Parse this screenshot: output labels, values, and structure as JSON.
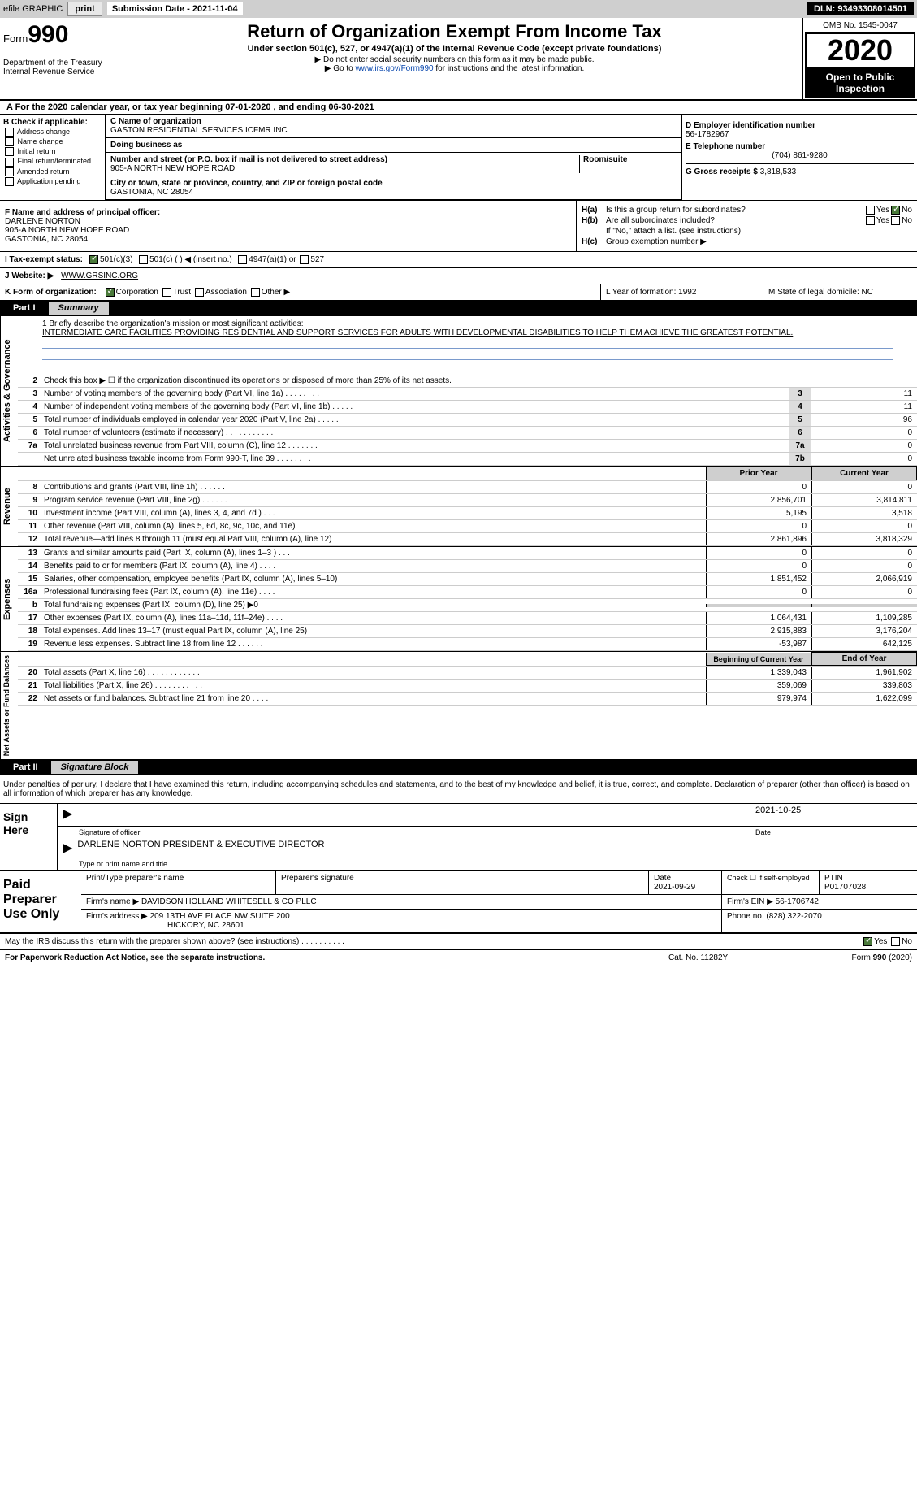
{
  "topbar": {
    "efile": "efile GRAPHIC ",
    "print": "print",
    "subdate_label": "Submission Date - 2021-11-04",
    "dln": "DLN: 93493308014501"
  },
  "header": {
    "form_word": "Form",
    "form_num": "990",
    "dept": "Department of the Treasury\nInternal Revenue Service",
    "title": "Return of Organization Exempt From Income Tax",
    "subtitle": "Under section 501(c), 527, or 4947(a)(1) of the Internal Revenue Code (except private foundations)",
    "note1": "▶ Do not enter social security numbers on this form as it may be made public.",
    "note2_pre": "▶ Go to ",
    "note2_link": "www.irs.gov/Form990",
    "note2_post": " for instructions and the latest information.",
    "omb": "OMB No. 1545-0047",
    "year": "2020",
    "open": "Open to Public Inspection"
  },
  "line_a": "A For the 2020 calendar year, or tax year beginning 07-01-2020   , and ending 06-30-2021",
  "section_b": {
    "head": "B Check if applicable:",
    "opts": [
      "Address change",
      "Name change",
      "Initial return",
      "Final return/terminated",
      "Amended return",
      "Application pending"
    ]
  },
  "section_c": {
    "name_label": "C Name of organization",
    "name": "GASTON RESIDENTIAL SERVICES ICFMR INC",
    "dba_label": "Doing business as",
    "addr_label": "Number and street (or P.O. box if mail is not delivered to street address)",
    "room_label": "Room/suite",
    "addr": "905-A NORTH NEW HOPE ROAD",
    "city_label": "City or town, state or province, country, and ZIP or foreign postal code",
    "city": "GASTONIA, NC  28054"
  },
  "section_d": {
    "ein_label": "D Employer identification number",
    "ein": "56-1782967",
    "tel_label": "E Telephone number",
    "tel": "(704) 861-9280",
    "gross_label": "G Gross receipts $",
    "gross": "3,818,533"
  },
  "section_f": {
    "label": "F Name and address of principal officer:",
    "name": "DARLENE NORTON",
    "addr1": "905-A NORTH NEW HOPE ROAD",
    "addr2": "GASTONIA, NC  28054"
  },
  "section_h": {
    "a_label": "H(a)",
    "a_text": "Is this a group return for subordinates?",
    "yes": "Yes",
    "no": "No",
    "b_label": "H(b)",
    "b_text": "Are all subordinates included?",
    "b_note": "If \"No,\" attach a list. (see instructions)",
    "c_label": "H(c)",
    "c_text": "Group exemption number ▶"
  },
  "section_i": {
    "label": "I    Tax-exempt status:",
    "o1": "501(c)(3)",
    "o2": "501(c) (  ) ◀ (insert no.)",
    "o3": "4947(a)(1) or",
    "o4": "527"
  },
  "section_j": {
    "label": "J   Website: ▶",
    "value": "WWW.GRSINC.ORG"
  },
  "section_k": {
    "label": "K Form of organization:",
    "o1": "Corporation",
    "o2": "Trust",
    "o3": "Association",
    "o4": "Other ▶"
  },
  "section_lm": {
    "l": "L Year of formation: 1992",
    "m": "M State of legal domicile: NC"
  },
  "part1": {
    "part": "Part I",
    "name": "Summary"
  },
  "mission": {
    "q1": "1   Briefly describe the organization's mission or most significant activities:",
    "text": "INTERMEDIATE CARE FACILITIES PROVIDING RESIDENTIAL AND SUPPORT SERVICES FOR ADULTS WITH DEVELOPMENTAL DISABILITIES TO HELP THEM ACHIEVE THE GREATEST POTENTIAL."
  },
  "gov_rows": [
    {
      "n": "2",
      "t": "Check this box ▶ ☐  if the organization discontinued its operations or disposed of more than 25% of its net assets.",
      "b": "",
      "v": ""
    },
    {
      "n": "3",
      "t": "Number of voting members of the governing body (Part VI, line 1a)  .   .   .   .   .   .   .   .",
      "b": "3",
      "v": "11"
    },
    {
      "n": "4",
      "t": "Number of independent voting members of the governing body (Part VI, line 1b)  .   .   .   .   .",
      "b": "4",
      "v": "11"
    },
    {
      "n": "5",
      "t": "Total number of individuals employed in calendar year 2020 (Part V, line 2a)  .   .   .   .   .",
      "b": "5",
      "v": "96"
    },
    {
      "n": "6",
      "t": "Total number of volunteers (estimate if necessary)  .   .   .   .   .   .   .   .   .   .   .",
      "b": "6",
      "v": "0"
    },
    {
      "n": "7a",
      "t": "Total unrelated business revenue from Part VIII, column (C), line 12  .   .   .   .   .   .   .",
      "b": "7a",
      "v": "0"
    },
    {
      "n": "",
      "t": "Net unrelated business taxable income from Form 990-T, line 39  .   .   .   .   .   .   .   .",
      "b": "7b",
      "v": "0"
    }
  ],
  "two_col_hdr": {
    "prior": "Prior Year",
    "current": "Current Year"
  },
  "revenue": [
    {
      "n": "8",
      "t": "Contributions and grants (Part VIII, line 1h)  .   .   .   .   .   .",
      "p": "0",
      "c": "0"
    },
    {
      "n": "9",
      "t": "Program service revenue (Part VIII, line 2g)  .   .   .   .   .   .",
      "p": "2,856,701",
      "c": "3,814,811"
    },
    {
      "n": "10",
      "t": "Investment income (Part VIII, column (A), lines 3, 4, and 7d )  .   .   .",
      "p": "5,195",
      "c": "3,518"
    },
    {
      "n": "11",
      "t": "Other revenue (Part VIII, column (A), lines 5, 6d, 8c, 9c, 10c, and 11e)",
      "p": "0",
      "c": "0"
    },
    {
      "n": "12",
      "t": "Total revenue—add lines 8 through 11 (must equal Part VIII, column (A), line 12)",
      "p": "2,861,896",
      "c": "3,818,329"
    }
  ],
  "expenses": [
    {
      "n": "13",
      "t": "Grants and similar amounts paid (Part IX, column (A), lines 1–3 )  .   .   .",
      "p": "0",
      "c": "0"
    },
    {
      "n": "14",
      "t": "Benefits paid to or for members (Part IX, column (A), line 4)  .   .   .   .",
      "p": "0",
      "c": "0"
    },
    {
      "n": "15",
      "t": "Salaries, other compensation, employee benefits (Part IX, column (A), lines 5–10)",
      "p": "1,851,452",
      "c": "2,066,919"
    },
    {
      "n": "16a",
      "t": "Professional fundraising fees (Part IX, column (A), line 11e)  .   .   .   .",
      "p": "0",
      "c": "0"
    },
    {
      "n": "b",
      "t": "Total fundraising expenses (Part IX, column (D), line 25) ▶0",
      "p": "",
      "c": "",
      "shade": true
    },
    {
      "n": "17",
      "t": "Other expenses (Part IX, column (A), lines 11a–11d, 11f–24e)  .   .   .   .",
      "p": "1,064,431",
      "c": "1,109,285"
    },
    {
      "n": "18",
      "t": "Total expenses. Add lines 13–17 (must equal Part IX, column (A), line 25)",
      "p": "2,915,883",
      "c": "3,176,204"
    },
    {
      "n": "19",
      "t": "Revenue less expenses. Subtract line 18 from line 12  .   .   .   .   .   .",
      "p": "-53,987",
      "c": "642,125"
    }
  ],
  "net_hdr": {
    "prior": "Beginning of Current Year",
    "current": "End of Year"
  },
  "netassets": [
    {
      "n": "20",
      "t": "Total assets (Part X, line 16)  .   .   .   .   .   .   .   .   .   .   .   .",
      "p": "1,339,043",
      "c": "1,961,902"
    },
    {
      "n": "21",
      "t": "Total liabilities (Part X, line 26)  .   .   .   .   .   .   .   .   .   .   .",
      "p": "359,069",
      "c": "339,803"
    },
    {
      "n": "22",
      "t": "Net assets or fund balances. Subtract line 21 from line 20  .   .   .   .",
      "p": "979,974",
      "c": "1,622,099"
    }
  ],
  "part2": {
    "part": "Part II",
    "name": "Signature Block"
  },
  "sig": {
    "decl": "Under penalties of perjury, I declare that I have examined this return, including accompanying schedules and statements, and to the best of my knowledge and belief, it is true, correct, and complete. Declaration of preparer (other than officer) is based on all information of which preparer has any knowledge.",
    "sign_here": "Sign Here",
    "sig_label": "Signature of officer",
    "date_label": "Date",
    "date": "2021-10-25",
    "name": "DARLENE NORTON  PRESIDENT & EXECUTIVE DIRECTOR",
    "name_label": "Type or print name and title"
  },
  "prep": {
    "label": "Paid Preparer Use Only",
    "h1": "Print/Type preparer's name",
    "h2": "Preparer's signature",
    "h3": "Date",
    "h3v": "2021-09-29",
    "h4": "Check ☐ if self-employed",
    "h5": "PTIN",
    "h5v": "P01707028",
    "firm_label": "Firm's name    ▶",
    "firm": "DAVIDSON HOLLAND WHITESELL & CO PLLC",
    "ein_label": "Firm's EIN ▶",
    "ein": "56-1706742",
    "addr_label": "Firm's address ▶",
    "addr1": "209 13TH AVE PLACE NW SUITE 200",
    "addr2": "HICKORY, NC  28601",
    "phone_label": "Phone no.",
    "phone": "(828) 322-2070"
  },
  "discuss": {
    "q": "May the IRS discuss this return with the preparer shown above? (see instructions)  .   .   .   .   .   .   .   .   .   .",
    "yes": "Yes",
    "no": "No"
  },
  "footer": {
    "left": "For Paperwork Reduction Act Notice, see the separate instructions.",
    "mid": "Cat. No. 11282Y",
    "right": "Form 990 (2020)"
  },
  "vlabels": {
    "gov": "Activities & Governance",
    "rev": "Revenue",
    "exp": "Expenses",
    "net": "Net Assets or Fund Balances"
  }
}
